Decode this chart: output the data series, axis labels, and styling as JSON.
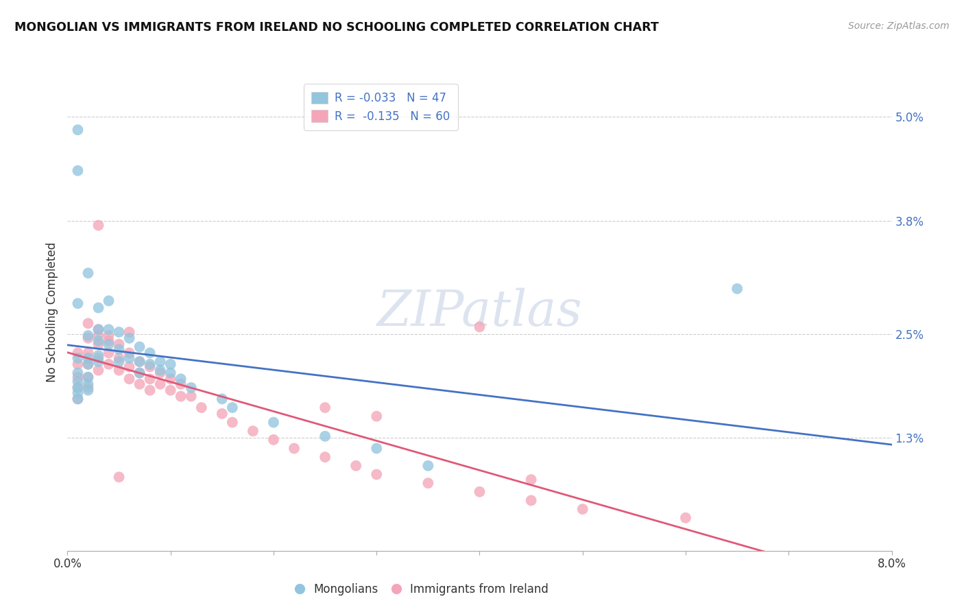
{
  "title": "MONGOLIAN VS IMMIGRANTS FROM IRELAND NO SCHOOLING COMPLETED CORRELATION CHART",
  "source": "Source: ZipAtlas.com",
  "ylabel": "No Schooling Completed",
  "blue_color": "#92c5de",
  "pink_color": "#f4a6b8",
  "blue_line_color": "#4472c4",
  "pink_line_color": "#e05878",
  "r_blue": "-0.033",
  "n_blue": "47",
  "r_pink": "-0.135",
  "n_pink": "60",
  "mongolians_x": [
    0.001,
    0.001,
    0.001,
    0.001,
    0.001,
    0.001,
    0.001,
    0.001,
    0.001,
    0.002,
    0.002,
    0.002,
    0.002,
    0.002,
    0.002,
    0.002,
    0.003,
    0.003,
    0.003,
    0.003,
    0.003,
    0.004,
    0.004,
    0.004,
    0.005,
    0.005,
    0.005,
    0.006,
    0.006,
    0.007,
    0.007,
    0.007,
    0.008,
    0.008,
    0.009,
    0.009,
    0.01,
    0.01,
    0.011,
    0.012,
    0.015,
    0.016,
    0.02,
    0.025,
    0.03,
    0.035,
    0.065
  ],
  "mongolians_y": [
    0.0485,
    0.0438,
    0.0285,
    0.0222,
    0.0205,
    0.0195,
    0.0188,
    0.0182,
    0.0175,
    0.032,
    0.0248,
    0.0222,
    0.0215,
    0.02,
    0.0192,
    0.0185,
    0.028,
    0.0255,
    0.0242,
    0.0225,
    0.0218,
    0.0288,
    0.0255,
    0.0238,
    0.0252,
    0.0232,
    0.0218,
    0.0245,
    0.0222,
    0.0235,
    0.0218,
    0.0205,
    0.0228,
    0.0215,
    0.0218,
    0.0208,
    0.0215,
    0.0205,
    0.0198,
    0.0188,
    0.0175,
    0.0165,
    0.0148,
    0.0132,
    0.0118,
    0.0098,
    0.0302
  ],
  "ireland_x": [
    0.001,
    0.001,
    0.001,
    0.001,
    0.001,
    0.002,
    0.002,
    0.002,
    0.002,
    0.002,
    0.003,
    0.003,
    0.003,
    0.003,
    0.004,
    0.004,
    0.004,
    0.005,
    0.005,
    0.005,
    0.006,
    0.006,
    0.006,
    0.007,
    0.007,
    0.007,
    0.008,
    0.008,
    0.008,
    0.009,
    0.009,
    0.01,
    0.01,
    0.011,
    0.011,
    0.012,
    0.013,
    0.015,
    0.016,
    0.018,
    0.02,
    0.022,
    0.025,
    0.028,
    0.03,
    0.035,
    0.04,
    0.045,
    0.05,
    0.06,
    0.003,
    0.002,
    0.003,
    0.004,
    0.005,
    0.006,
    0.04,
    0.045,
    0.025,
    0.03
  ],
  "ireland_y": [
    0.0228,
    0.0215,
    0.02,
    0.0188,
    0.0175,
    0.0245,
    0.0228,
    0.0215,
    0.02,
    0.0188,
    0.0255,
    0.0238,
    0.0222,
    0.0208,
    0.0248,
    0.0228,
    0.0215,
    0.0238,
    0.0222,
    0.0208,
    0.0228,
    0.0212,
    0.0198,
    0.0218,
    0.0205,
    0.0192,
    0.0212,
    0.0198,
    0.0185,
    0.0205,
    0.0192,
    0.0198,
    0.0185,
    0.0192,
    0.0178,
    0.0178,
    0.0165,
    0.0158,
    0.0148,
    0.0138,
    0.0128,
    0.0118,
    0.0108,
    0.0098,
    0.0088,
    0.0078,
    0.0068,
    0.0058,
    0.0048,
    0.0038,
    0.0375,
    0.0262,
    0.0248,
    0.0242,
    0.0085,
    0.0252,
    0.0258,
    0.0082,
    0.0165,
    0.0155
  ],
  "xlim": [
    0.0,
    0.08
  ],
  "ylim": [
    0.0,
    0.055
  ],
  "right_ytick_vals": [
    0.05,
    0.038,
    0.025,
    0.013
  ],
  "right_ytick_labels": [
    "5.0%",
    "3.8%",
    "2.5%",
    "1.3%"
  ],
  "grid_vals": [
    0.05,
    0.038,
    0.025,
    0.013,
    0.0
  ],
  "background_color": "#ffffff",
  "watermark_text": "ZIPatlas",
  "watermark_color": "#dde4f0",
  "text_color": "#333333",
  "right_axis_color": "#4472c4",
  "legend_label_color": "#4472c4",
  "title_fontsize": 12.5,
  "source_fontsize": 10,
  "tick_fontsize": 12,
  "ylabel_fontsize": 12,
  "scatter_size": 130,
  "scatter_alpha": 0.78,
  "line_width": 2.0,
  "watermark_fontsize": 52
}
